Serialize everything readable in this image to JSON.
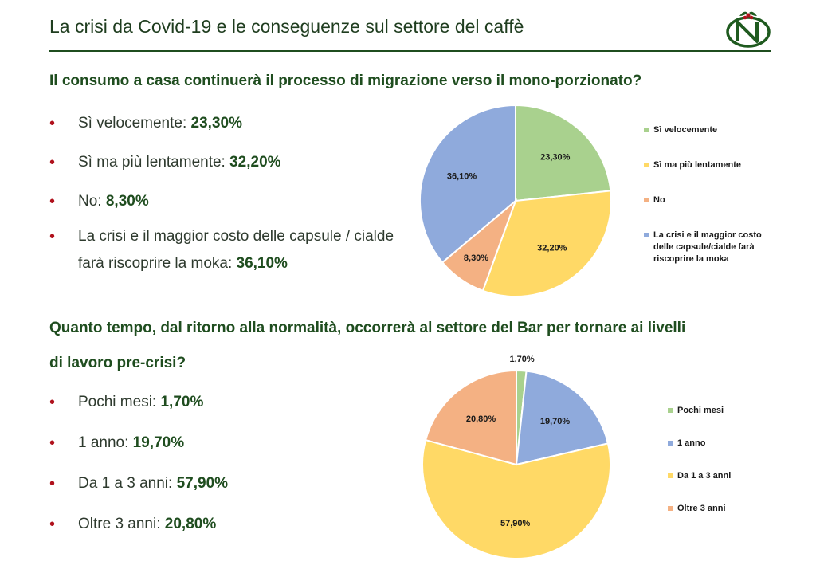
{
  "header": {
    "title": "La crisi da Covid-19 e le conseguenze sul settore del caffè"
  },
  "colors": {
    "green": "#a9d18e",
    "yellow": "#ffd966",
    "orange": "#f4b183",
    "blue": "#8faadc",
    "accent_red": "#b0111c",
    "dark_green": "#1f4d1f"
  },
  "section1": {
    "question": "Il consumo a casa continuerà il processo di migrazione verso il mono-porzionato?",
    "bullets": [
      {
        "label": "Sì velocemente: ",
        "value": "23,30%"
      },
      {
        "label": "Sì ma più lentamente: ",
        "value": "32,20%"
      },
      {
        "label": "No: ",
        "value": "8,30%"
      },
      {
        "label": "La crisi e il maggior costo delle capsule / cialde farà riscoprire la moka: ",
        "value": "36,10%"
      }
    ]
  },
  "section2": {
    "question_line1": "Quanto tempo, dal ritorno alla normalità, occorrerà al settore del Bar per tornare ai livelli",
    "question_line2": "di lavoro pre-crisi?",
    "bullets": [
      {
        "label": "Pochi mesi: ",
        "value": "1,70%"
      },
      {
        "label": "1 anno: ",
        "value": "19,70%"
      },
      {
        "label": "Da 1 a 3 anni: ",
        "value": "57,90%"
      },
      {
        "label": "Oltre 3 anni: ",
        "value": "20,80%"
      }
    ]
  },
  "chart_data": [
    {
      "type": "pie",
      "categories": [
        "Sì velocemente",
        "Sì ma più lentamente",
        "No",
        "La crisi e il maggior costo delle capsule/cialde farà riscoprire la moka"
      ],
      "values": [
        23.3,
        32.2,
        8.3,
        36.1
      ],
      "labels": [
        "23,30%",
        "32,20%",
        "8,30%",
        "36,10%"
      ],
      "colors": [
        "#a9d18e",
        "#ffd966",
        "#f4b183",
        "#8faadc"
      ],
      "legend": "right"
    },
    {
      "type": "pie",
      "categories": [
        "Pochi mesi",
        "1 anno",
        "Da 1 a 3 anni",
        "Oltre 3 anni"
      ],
      "values": [
        1.7,
        19.7,
        57.9,
        20.8
      ],
      "labels": [
        "1,70%",
        "19,70%",
        "57,90%",
        "20,80%"
      ],
      "colors": [
        "#a9d18e",
        "#8faadc",
        "#ffd966",
        "#f4b183"
      ],
      "legend": "right"
    }
  ]
}
